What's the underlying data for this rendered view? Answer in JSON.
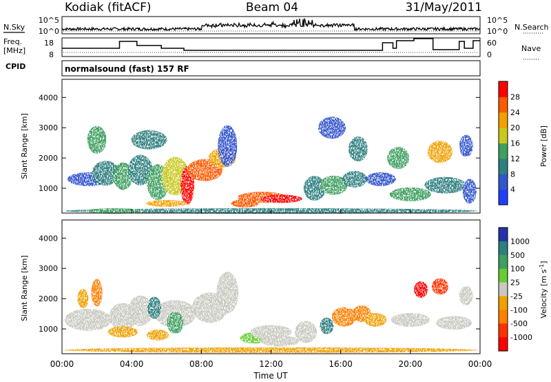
{
  "header": {
    "station": "Kodiak (fitACF)",
    "beam": "Beam 04",
    "date": "31/May/2011"
  },
  "noise_panel": {
    "left_label": "N.Sky",
    "right_label": "N.Search",
    "ticks": [
      "10^5",
      "10^0"
    ],
    "right_ticks": [
      "10^5",
      "10^0"
    ]
  },
  "freq_panel": {
    "left_label_1": "Freq.",
    "left_label_2": "[MHz]",
    "right_label": "Nave",
    "left_ticks": [
      "18",
      "8"
    ],
    "right_ticks": [
      "60",
      "0"
    ]
  },
  "cpid": {
    "label": "CPID",
    "program": "normalsound (fast) 157 RF"
  },
  "chart_data": [
    {
      "type": "heatmap",
      "name": "power",
      "ylabel": "Slant Range [km]",
      "ylim": [
        180,
        4600
      ],
      "yticks": [
        "1000",
        "2000",
        "3000",
        "4000"
      ],
      "colorbar_label": "Power [dB]",
      "colorbar_ticks": [
        "4",
        "8",
        "12",
        "16",
        "20",
        "24",
        "28"
      ],
      "colors": [
        "#1f3fff",
        "#3355cc",
        "#2e7f7f",
        "#3f9f5f",
        "#c8c820",
        "#f0a000",
        "#ff5a00",
        "#ff0000"
      ],
      "xlim": [
        "00:00",
        "24:00"
      ]
    },
    {
      "type": "heatmap",
      "name": "velocity",
      "ylabel": "Slant Range [km]",
      "ylim": [
        180,
        4600
      ],
      "yticks": [
        "1000",
        "2000",
        "3000",
        "4000"
      ],
      "colorbar_label": "Velocity [m s",
      "colorbar_label_sup": "-1",
      "colorbar_label_end": "]",
      "colorbar_ticks": [
        "1000",
        "500",
        "100",
        "25",
        "-25",
        "-100",
        "-500",
        "-1000"
      ],
      "colors": [
        "#2233aa",
        "#2e7f7f",
        "#3f9f5f",
        "#66cc33",
        "#c8c8c0",
        "#f0a000",
        "#ff7f00",
        "#ff3300",
        "#ff0000"
      ],
      "xlabel": "Time UT",
      "xticks": [
        "00:00",
        "04:00",
        "08:00",
        "12:00",
        "16:00",
        "20:00",
        "00:00"
      ],
      "xlim": [
        "00:00",
        "24:00"
      ]
    }
  ]
}
